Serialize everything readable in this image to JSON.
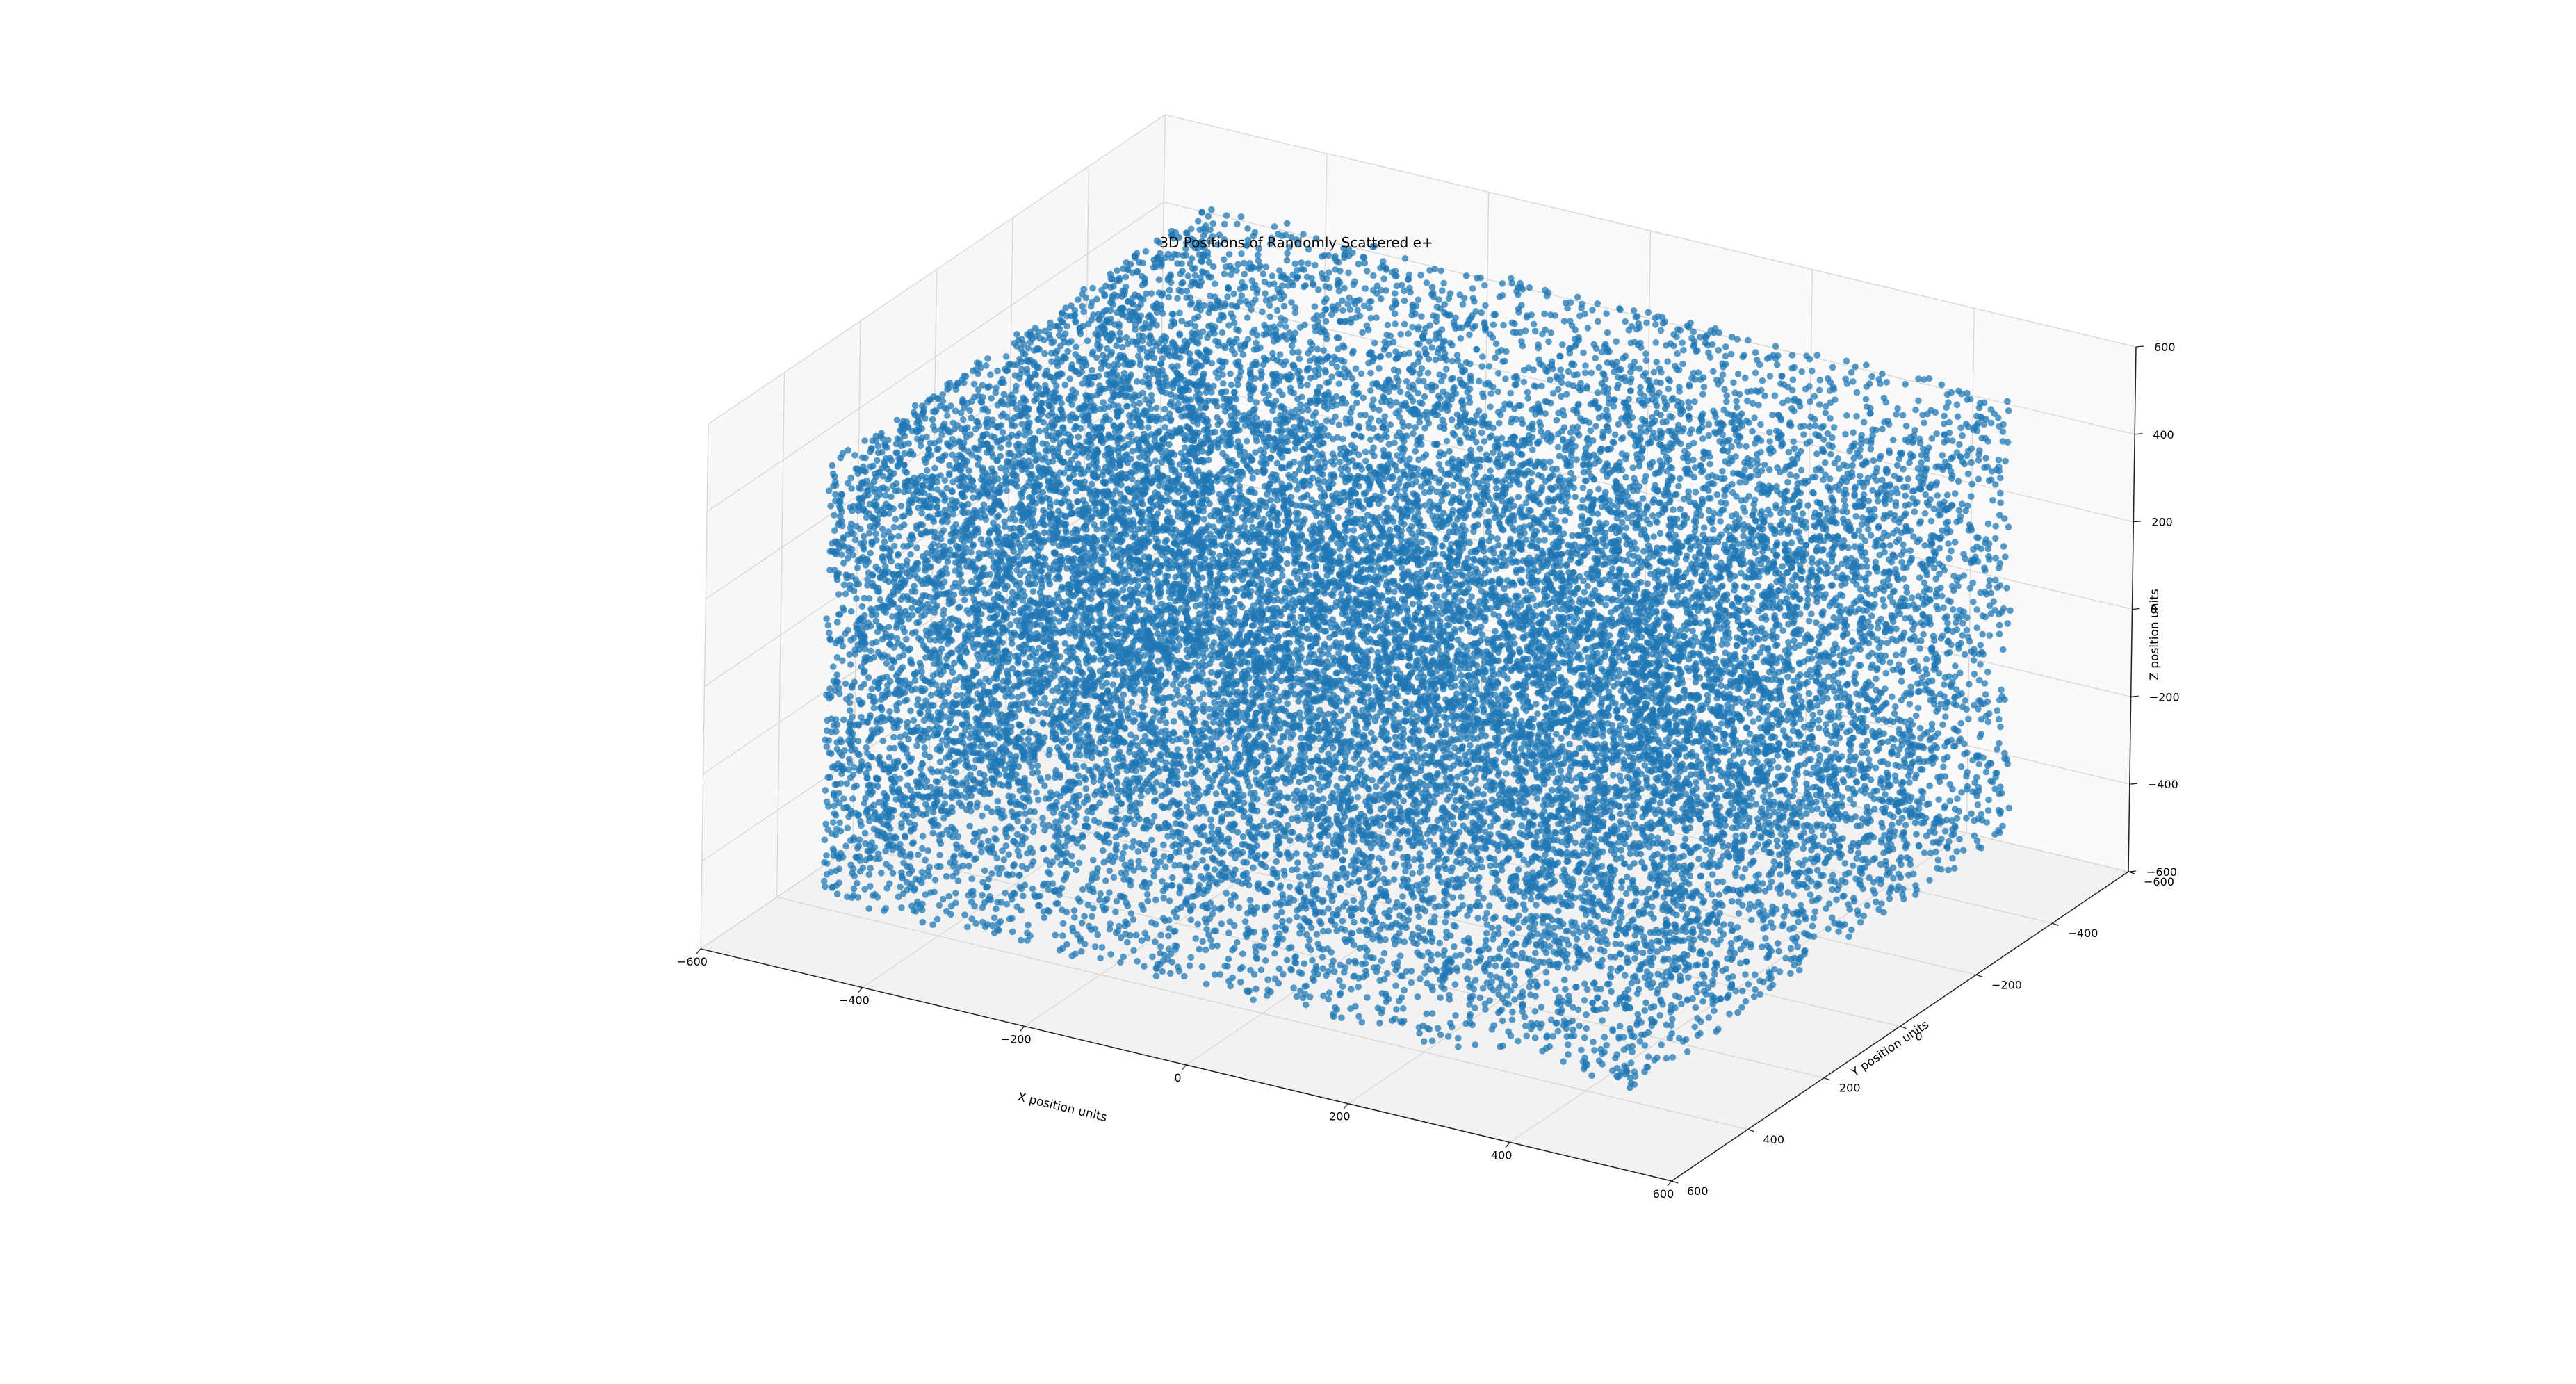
{
  "chart_data": {
    "type": "scatter",
    "projection": "3d",
    "title": "3D Positions of Randomly Scattered e+",
    "xlabel": "X position units",
    "ylabel": "Y position units",
    "zlabel": "Z position units",
    "xlim": [
      -600,
      600
    ],
    "ylim": [
      -600,
      600
    ],
    "zlim": [
      -600,
      600
    ],
    "xticks": [
      -600,
      -400,
      -200,
      0,
      200,
      400,
      600
    ],
    "yticks": [
      -600,
      -400,
      -200,
      0,
      200,
      400,
      600
    ],
    "zticks": [
      -600,
      -400,
      -200,
      0,
      200,
      400,
      600
    ],
    "grid": true,
    "marker_color": "#1f77b4",
    "point_distribution": {
      "shape": "uniform box",
      "x_range": [
        -500,
        500
      ],
      "y_range": [
        -500,
        500
      ],
      "z_range": [
        -500,
        500
      ]
    }
  }
}
